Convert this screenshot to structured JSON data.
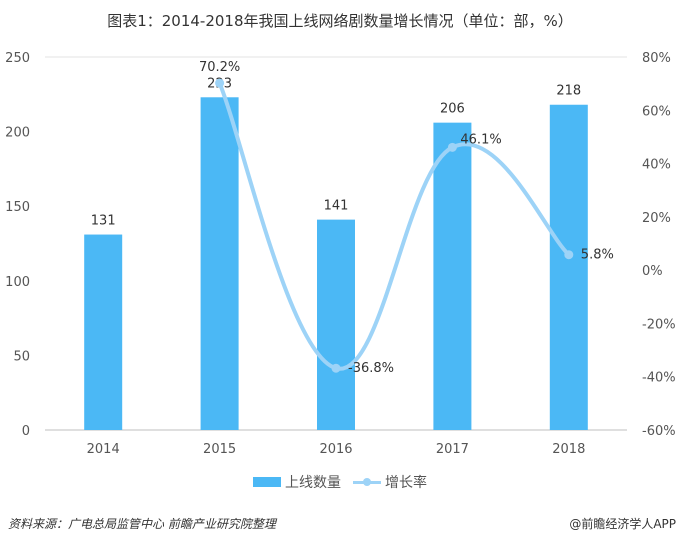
{
  "chart_data": {
    "type": "bar+line",
    "title": "图表1：2014-2018年我国上线网络剧数量增长情况（单位：部，%）",
    "categories": [
      "2014",
      "2015",
      "2016",
      "2017",
      "2018"
    ],
    "series": [
      {
        "name": "上线数量",
        "type": "bar",
        "axis": "left",
        "values": [
          131,
          223,
          141,
          206,
          218
        ],
        "labels": [
          "131",
          "223",
          "141",
          "206",
          "218"
        ],
        "color": "#4BB8F5"
      },
      {
        "name": "增长率",
        "type": "line",
        "axis": "right",
        "values": [
          null,
          70.2,
          -36.8,
          46.1,
          5.8
        ],
        "labels": [
          "",
          "70.2%",
          "-36.8%",
          "46.1%",
          "5.8%"
        ],
        "color": "#9DD3F7"
      }
    ],
    "left_axis": {
      "ylim": [
        0,
        250
      ],
      "ticks": [
        "0",
        "50",
        "100",
        "150",
        "200",
        "250"
      ]
    },
    "right_axis": {
      "ylim": [
        -60,
        80
      ],
      "ticks": [
        "-60%",
        "-40%",
        "-20%",
        "0%",
        "20%",
        "40%",
        "60%",
        "80%"
      ]
    },
    "legend": "bottom-center"
  },
  "footer": {
    "source": "资料来源：广电总局监管中心 前瞻产业研究院整理",
    "brand": "@前瞻经济学人APP"
  }
}
